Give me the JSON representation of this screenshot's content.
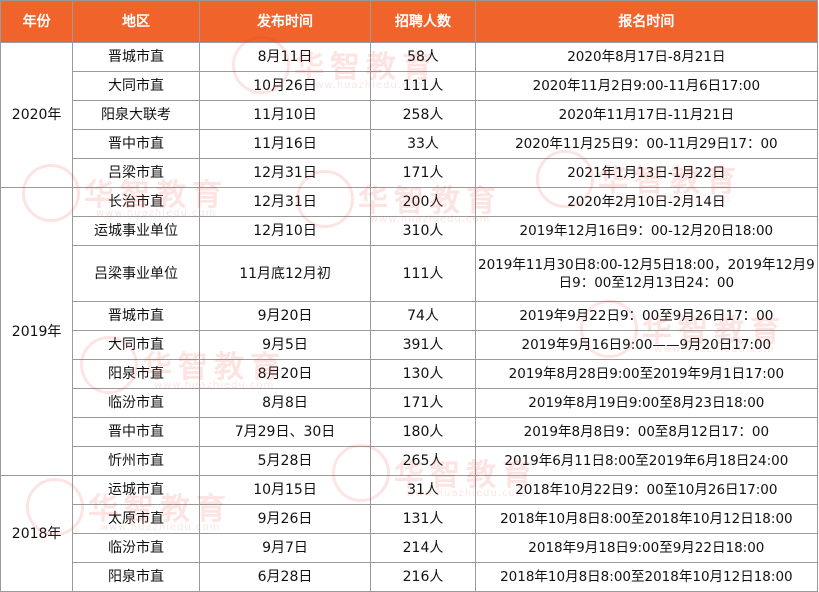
{
  "headers": {
    "year": "年份",
    "area": "地区",
    "publish_date": "发布时间",
    "recruit_count": "招聘人数",
    "register_time": "报名时间"
  },
  "groups": [
    {
      "year": "2020年",
      "rows": [
        {
          "area": "晋城市直",
          "date": "8月11日",
          "count": "58人",
          "range": "2020年8月17日-8月21日"
        },
        {
          "area": "大同市直",
          "date": "10月26日",
          "count": "111人",
          "range": "2020年11月2日9:00-11月6日17:00"
        },
        {
          "area": "阳泉大联考",
          "date": "11月10日",
          "count": "258人",
          "range": "2020年11月17日-11月21日"
        },
        {
          "area": "晋中市直",
          "date": "11月16日",
          "count": "33人",
          "range": "2020年11月25日9：00-11月29日17：00"
        },
        {
          "area": "吕梁市直",
          "date": "12月31日",
          "count": "171人",
          "range": "2021年1月13日-1月22日"
        }
      ]
    },
    {
      "year": "2019年",
      "rows": [
        {
          "area": "长治市直",
          "date": "12月31日",
          "count": "200人",
          "range": "2020年2月10日-2月14日"
        },
        {
          "area": "运城事业单位",
          "date": "12月10日",
          "count": "310人",
          "range": "2019年12月16日9：00-12月20日18:00"
        },
        {
          "area": "吕梁事业单位",
          "date": "11月底12月初",
          "count": "111人",
          "range": "2019年11月30日8:00-12月5日18:00，2019年12月9日9：00至12月13日24：00"
        },
        {
          "area": "晋城市直",
          "date": "9月20日",
          "count": "74人",
          "range": "2019年9月22日9：00至9月26日17：00"
        },
        {
          "area": "大同市直",
          "date": "9月5日",
          "count": "391人",
          "range": "2019年9月16日9:00——9月20日17:00"
        },
        {
          "area": "阳泉市直",
          "date": "8月20日",
          "count": "130人",
          "range": "2019年8月28日9:00至2019年9月1日17:00"
        },
        {
          "area": "临汾市直",
          "date": "8月8日",
          "count": "171人",
          "range": "2019年8月19日9:00至8月23日18:00"
        },
        {
          "area": "晋中市直",
          "date": "7月29日、30日",
          "count": "180人",
          "range": "2019年8月8日9：00至8月12日17：00"
        },
        {
          "area": "忻州市直",
          "date": "5月28日",
          "count": "265人",
          "range": "2019年6月11日8:00至2019年6月18日24:00"
        }
      ]
    },
    {
      "year": "2018年",
      "rows": [
        {
          "area": "运城市直",
          "date": "10月15日",
          "count": "31人",
          "range": "2018年10月22日9：00至10月26日17:00"
        },
        {
          "area": "太原市直",
          "date": "9月26日",
          "count": "131人",
          "range": "2018年10月8日8:00至2018年10月12日18:00"
        },
        {
          "area": "临汾市直",
          "date": "9月7日",
          "count": "214人",
          "range": "2018年9月18日9:00至9月22日18:00"
        },
        {
          "area": "阳泉市直",
          "date": "6月28日",
          "count": "216人",
          "range": "2018年10月8日8:00至2018年10月12日18:00"
        }
      ]
    }
  ],
  "watermark": {
    "brand": "华智教育",
    "url": "www.huazhiedu.com",
    "color": "#e4342b"
  },
  "colors": {
    "header_bg": "#f0632a",
    "header_text": "#ffffff",
    "border": "#9a9a9a"
  }
}
